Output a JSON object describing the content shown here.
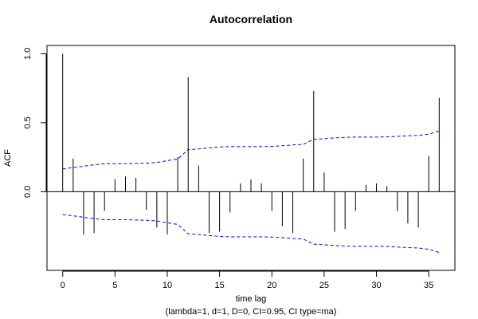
{
  "chart_data": {
    "type": "bar",
    "title": "Autocorrelation",
    "xlabel": "time lag",
    "ylabel": "ACF",
    "subtitle": "(lambda=1, d=1, D=0, CI=0.95, CI type=ma)",
    "xlim": [
      -1.5,
      37.5
    ],
    "ylim": [
      -0.57,
      1.06
    ],
    "x_ticks": [
      0,
      5,
      10,
      15,
      20,
      25,
      30,
      35
    ],
    "y_ticks": [
      0.0,
      0.5,
      1.0
    ],
    "y_tick_labels": [
      "0.0",
      "0.5",
      "1.0"
    ],
    "lags": [
      0,
      1,
      2,
      3,
      4,
      5,
      6,
      7,
      8,
      9,
      10,
      11,
      12,
      13,
      14,
      15,
      16,
      17,
      18,
      19,
      20,
      21,
      22,
      23,
      24,
      25,
      26,
      27,
      28,
      29,
      30,
      31,
      32,
      33,
      34,
      35,
      36
    ],
    "acf": [
      1.0,
      0.24,
      -0.31,
      -0.3,
      -0.14,
      0.09,
      0.11,
      0.1,
      -0.13,
      -0.26,
      -0.31,
      0.25,
      0.83,
      0.19,
      -0.3,
      -0.29,
      -0.15,
      0.06,
      0.09,
      0.06,
      -0.14,
      -0.25,
      -0.3,
      0.24,
      0.73,
      0.14,
      -0.29,
      -0.27,
      -0.14,
      0.05,
      0.06,
      0.04,
      -0.14,
      -0.23,
      -0.26,
      0.26,
      0.68
    ],
    "ci_upper": [
      0.165,
      0.175,
      0.185,
      0.195,
      0.203,
      0.203,
      0.203,
      0.205,
      0.207,
      0.212,
      0.225,
      0.237,
      0.305,
      0.31,
      0.318,
      0.324,
      0.327,
      0.327,
      0.327,
      0.327,
      0.329,
      0.333,
      0.339,
      0.343,
      0.38,
      0.384,
      0.39,
      0.394,
      0.396,
      0.396,
      0.396,
      0.397,
      0.401,
      0.405,
      0.408,
      0.417,
      0.44
    ],
    "ci_lower": [
      -0.165,
      -0.175,
      -0.185,
      -0.195,
      -0.203,
      -0.203,
      -0.203,
      -0.205,
      -0.207,
      -0.212,
      -0.225,
      -0.237,
      -0.305,
      -0.31,
      -0.318,
      -0.324,
      -0.327,
      -0.327,
      -0.327,
      -0.327,
      -0.329,
      -0.333,
      -0.339,
      -0.343,
      -0.38,
      -0.384,
      -0.39,
      -0.394,
      -0.396,
      -0.396,
      -0.396,
      -0.397,
      -0.401,
      -0.405,
      -0.408,
      -0.417,
      -0.44
    ],
    "bar_color": "#000000",
    "ci_color": "#0000ff",
    "zero_line_color": "#000000"
  }
}
